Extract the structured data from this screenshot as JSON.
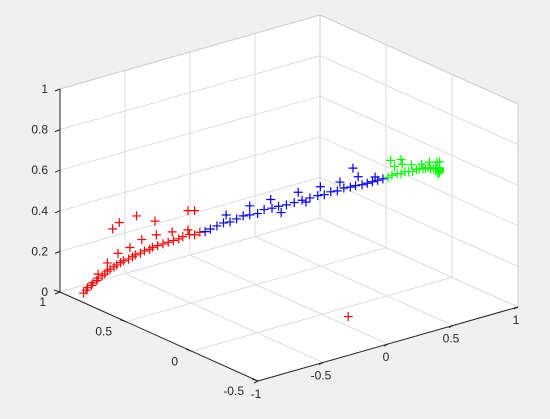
{
  "chart_data": {
    "type": "scatter",
    "projection": "3d",
    "grid": true,
    "xlim": [
      -1,
      1
    ],
    "ylim": [
      -0.5,
      1
    ],
    "zlim": [
      0,
      1
    ],
    "x_ticks": [
      {
        "value": -1,
        "label": "-1"
      },
      {
        "value": -0.5,
        "label": "-0.5"
      },
      {
        "value": 0,
        "label": "0"
      },
      {
        "value": 0.5,
        "label": "0.5"
      },
      {
        "value": 1,
        "label": "1"
      }
    ],
    "y_ticks": [
      {
        "value": -0.5,
        "label": "-0.5"
      },
      {
        "value": 0,
        "label": "0"
      },
      {
        "value": 0.5,
        "label": "0.5"
      },
      {
        "value": 1,
        "label": "1"
      }
    ],
    "z_ticks": [
      {
        "value": 0,
        "label": "0"
      },
      {
        "value": 0.2,
        "label": "0.2"
      },
      {
        "value": 0.4,
        "label": "0.4"
      },
      {
        "value": 0.6,
        "label": "0.6"
      },
      {
        "value": 0.8,
        "label": "0.8"
      },
      {
        "value": 1,
        "label": "1"
      }
    ],
    "marker": "+",
    "series": [
      {
        "color": "#ff0000",
        "points": [
          [
            -0.9,
            0.92,
            0.0
          ],
          [
            -0.9,
            0.9,
            0.02
          ],
          [
            -0.91,
            0.88,
            0.04
          ],
          [
            -0.91,
            0.85,
            0.06
          ],
          [
            -0.92,
            0.83,
            0.08
          ],
          [
            -0.92,
            0.8,
            0.1
          ],
          [
            -0.93,
            0.78,
            0.12
          ],
          [
            -0.93,
            0.75,
            0.14
          ],
          [
            -0.94,
            0.72,
            0.16
          ],
          [
            -0.94,
            0.7,
            0.18
          ],
          [
            -0.95,
            0.67,
            0.2
          ],
          [
            -0.95,
            0.64,
            0.22
          ],
          [
            -0.96,
            0.61,
            0.24
          ],
          [
            -0.96,
            0.58,
            0.26
          ],
          [
            -0.97,
            0.55,
            0.28
          ],
          [
            -0.97,
            0.51,
            0.3
          ],
          [
            -0.97,
            0.48,
            0.32
          ],
          [
            -0.98,
            0.45,
            0.34
          ],
          [
            -0.98,
            0.41,
            0.36
          ],
          [
            -0.98,
            0.38,
            0.38
          ],
          [
            -0.98,
            0.34,
            0.4
          ],
          [
            -0.99,
            0.31,
            0.42
          ],
          [
            -0.99,
            0.27,
            0.44
          ],
          [
            -0.99,
            0.23,
            0.46
          ],
          [
            -0.99,
            0.19,
            0.48
          ],
          [
            -0.99,
            0.15,
            0.5
          ],
          [
            -0.99,
            0.11,
            0.52
          ],
          [
            -0.99,
            0.08,
            0.54
          ],
          [
            -0.98,
            0.04,
            0.56
          ],
          [
            -0.98,
            0.0,
            0.57
          ],
          [
            -0.97,
            -0.03,
            0.59
          ],
          [
            -0.91,
            0.8,
            0.13
          ],
          [
            -0.94,
            0.7,
            0.22
          ],
          [
            -0.96,
            0.6,
            0.3
          ],
          [
            -0.97,
            0.5,
            0.36
          ],
          [
            -0.98,
            0.4,
            0.43
          ],
          [
            -0.99,
            0.28,
            0.49
          ],
          [
            -0.99,
            0.16,
            0.54
          ],
          [
            -0.98,
            0.05,
            0.58
          ],
          [
            -0.97,
            0.45,
            0.53
          ],
          [
            -0.92,
            0.68,
            0.39
          ],
          [
            -0.93,
            0.62,
            0.44
          ],
          [
            -0.98,
            0.3,
            0.55
          ],
          [
            -0.96,
            0.02,
            0.68
          ],
          [
            -0.97,
            0.06,
            0.67
          ],
          [
            0.1,
            -0.1,
            0.0
          ]
        ]
      },
      {
        "color": "#0000ff",
        "points": [
          [
            -0.96,
            -0.06,
            0.6
          ],
          [
            -0.95,
            -0.09,
            0.62
          ],
          [
            -0.93,
            -0.12,
            0.64
          ],
          [
            -0.91,
            -0.15,
            0.66
          ],
          [
            -0.89,
            -0.18,
            0.67
          ],
          [
            -0.87,
            -0.21,
            0.69
          ],
          [
            -0.85,
            -0.24,
            0.71
          ],
          [
            -0.83,
            -0.27,
            0.72
          ],
          [
            -0.8,
            -0.3,
            0.73
          ],
          [
            -0.77,
            -0.32,
            0.75
          ],
          [
            -0.74,
            -0.35,
            0.76
          ],
          [
            -0.71,
            -0.37,
            0.77
          ],
          [
            -0.68,
            -0.4,
            0.78
          ],
          [
            -0.64,
            -0.42,
            0.79
          ],
          [
            -0.6,
            -0.44,
            0.8
          ],
          [
            -0.56,
            -0.46,
            0.81
          ],
          [
            -0.52,
            -0.48,
            0.82
          ],
          [
            -0.48,
            -0.49,
            0.82
          ],
          [
            -0.44,
            -0.5,
            0.83
          ],
          [
            -0.4,
            -0.51,
            0.83
          ],
          [
            -0.36,
            -0.52,
            0.84
          ],
          [
            -0.32,
            -0.53,
            0.84
          ],
          [
            -0.28,
            -0.53,
            0.84
          ],
          [
            -0.24,
            -0.54,
            0.84
          ],
          [
            -0.2,
            -0.54,
            0.84
          ],
          [
            -0.16,
            -0.54,
            0.84
          ],
          [
            -0.12,
            -0.54,
            0.84
          ],
          [
            -0.08,
            -0.54,
            0.84
          ],
          [
            -0.9,
            -0.16,
            0.7
          ],
          [
            -0.82,
            -0.26,
            0.76
          ],
          [
            -0.74,
            -0.34,
            0.8
          ],
          [
            -0.62,
            -0.43,
            0.84
          ],
          [
            -0.5,
            -0.48,
            0.86
          ],
          [
            -0.38,
            -0.51,
            0.87
          ],
          [
            -0.26,
            -0.53,
            0.88
          ],
          [
            -0.14,
            -0.54,
            0.86
          ],
          [
            -0.7,
            -0.38,
            0.74
          ],
          [
            -0.58,
            -0.45,
            0.79
          ],
          [
            -0.3,
            -0.53,
            0.93
          ]
        ]
      },
      {
        "color": "#00ff00",
        "points": [
          [
            -0.04,
            -0.54,
            0.84
          ],
          [
            0.0,
            -0.53,
            0.84
          ],
          [
            0.04,
            -0.53,
            0.84
          ],
          [
            0.08,
            -0.52,
            0.83
          ],
          [
            0.12,
            -0.51,
            0.83
          ],
          [
            0.16,
            -0.5,
            0.82
          ],
          [
            0.2,
            -0.49,
            0.81
          ],
          [
            0.24,
            -0.48,
            0.81
          ],
          [
            0.28,
            -0.46,
            0.8
          ],
          [
            0.32,
            -0.45,
            0.79
          ],
          [
            0.36,
            -0.43,
            0.78
          ],
          [
            0.4,
            -0.41,
            0.77
          ],
          [
            0.44,
            -0.39,
            0.75
          ],
          [
            0.48,
            -0.37,
            0.74
          ],
          [
            0.52,
            -0.35,
            0.73
          ],
          [
            0.56,
            -0.32,
            0.71
          ],
          [
            0.6,
            -0.3,
            0.7
          ],
          [
            0.63,
            -0.27,
            0.68
          ],
          [
            0.66,
            -0.24,
            0.66
          ],
          [
            0.69,
            -0.21,
            0.64
          ],
          [
            0.72,
            -0.18,
            0.62
          ],
          [
            0.74,
            -0.15,
            0.6
          ],
          [
            0.02,
            -0.53,
            0.88
          ],
          [
            0.1,
            -0.51,
            0.87
          ],
          [
            0.18,
            -0.5,
            0.85
          ],
          [
            0.3,
            -0.46,
            0.82
          ],
          [
            0.42,
            -0.4,
            0.79
          ],
          [
            0.54,
            -0.34,
            0.75
          ],
          [
            0.62,
            -0.28,
            0.72
          ],
          [
            0.7,
            -0.2,
            0.65
          ],
          [
            -0.02,
            -0.54,
            0.92
          ],
          [
            0.08,
            -0.52,
            0.9
          ]
        ]
      }
    ]
  }
}
